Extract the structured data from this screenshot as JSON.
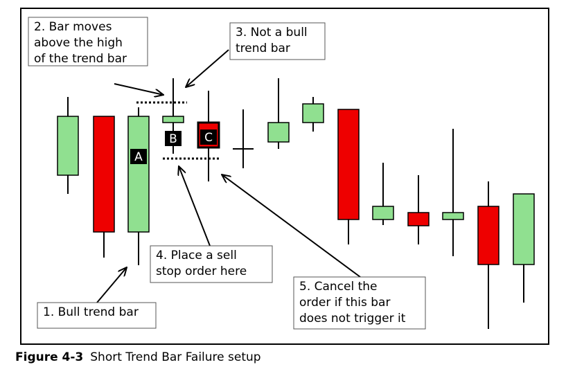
{
  "annotations": [
    {
      "lines": [
        "2. Bar moves",
        "above the high",
        "of the trend bar"
      ]
    },
    {
      "lines": [
        "3. Not a bull",
        "trend bar"
      ]
    },
    {
      "lines": [
        "4. Place a sell",
        "stop order here"
      ]
    },
    {
      "lines": [
        "5. Cancel the",
        "order if this bar",
        "does not trigger it"
      ]
    },
    {
      "lines": [
        "1. Bull trend bar"
      ]
    }
  ],
  "bar_labels": [
    "A",
    "B",
    "C"
  ],
  "caption": {
    "number": "Figure 4-3",
    "title": "Short Trend Bar Failure setup"
  }
}
